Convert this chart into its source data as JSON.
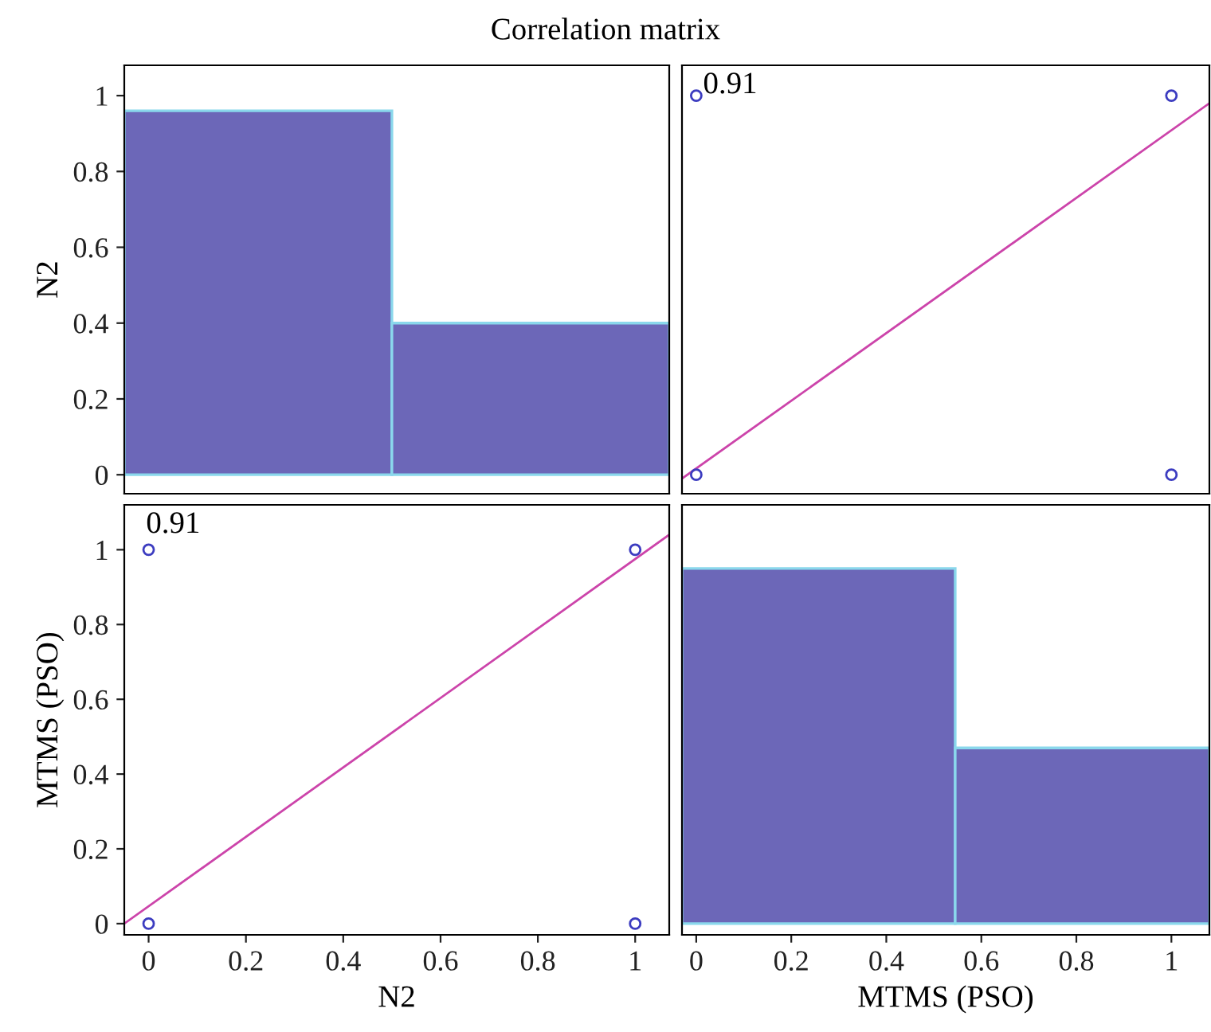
{
  "chart_data": [
    {
      "type": "histogram",
      "title": "Correlation matrix",
      "ylabel": "N2",
      "bins": [
        -0.05,
        0.5,
        1.07
      ],
      "values": [
        0.96,
        0.4
      ],
      "color": "#6c67b8",
      "xlim": [
        -0.05,
        1.07
      ],
      "ylim": [
        -0.05,
        1.08
      ],
      "yticks": [
        0,
        0.2,
        0.4,
        0.6,
        0.8,
        1
      ],
      "tick_labels": "y"
    },
    {
      "type": "scatter",
      "annotations": [
        "0.91"
      ],
      "series": [
        {
          "type": "scatter",
          "color": "#3c3cc0",
          "marker": "circle",
          "x": [
            0,
            0,
            1,
            1
          ],
          "values": [
            1,
            0,
            1,
            0
          ]
        },
        {
          "type": "line",
          "color": "#cc44aa",
          "marker": "none",
          "x": [
            -0.03,
            1.08
          ],
          "values": [
            -0.01,
            0.98
          ]
        }
      ],
      "xlim": [
        -0.03,
        1.08
      ],
      "ylim": [
        -0.05,
        1.08
      ],
      "xticks": [
        0,
        0.2,
        0.4,
        0.6,
        0.8,
        1
      ],
      "yticks": [
        0,
        0.2,
        0.4,
        0.6,
        0.8,
        1
      ],
      "tick_labels": false
    },
    {
      "type": "scatter",
      "xlabel": "N2",
      "ylabel": "MTMS (PSO)",
      "annotations": [
        "0.91"
      ],
      "series": [
        {
          "type": "scatter",
          "color": "#3c3cc0",
          "marker": "circle",
          "x": [
            0,
            0,
            1,
            1
          ],
          "values": [
            1,
            0,
            1,
            0
          ]
        },
        {
          "type": "line",
          "color": "#cc44aa",
          "marker": "none",
          "x": [
            -0.05,
            1.07
          ],
          "values": [
            0,
            1.04
          ]
        }
      ],
      "xlim": [
        -0.05,
        1.07
      ],
      "ylim": [
        -0.03,
        1.12
      ],
      "xticks": [
        0,
        0.2,
        0.4,
        0.6,
        0.8,
        1
      ],
      "yticks": [
        0,
        0.2,
        0.4,
        0.6,
        0.8,
        1
      ]
    },
    {
      "type": "histogram",
      "xlabel": "MTMS (PSO)",
      "bins": [
        -0.03,
        0.545,
        1.08
      ],
      "values": [
        0.95,
        0.47
      ],
      "color": "#6c67b8",
      "xlim": [
        -0.03,
        1.08
      ],
      "ylim": [
        -0.03,
        1.12
      ],
      "xticks": [
        0,
        0.2,
        0.4,
        0.6,
        0.8,
        1
      ],
      "tick_labels": "x"
    }
  ]
}
